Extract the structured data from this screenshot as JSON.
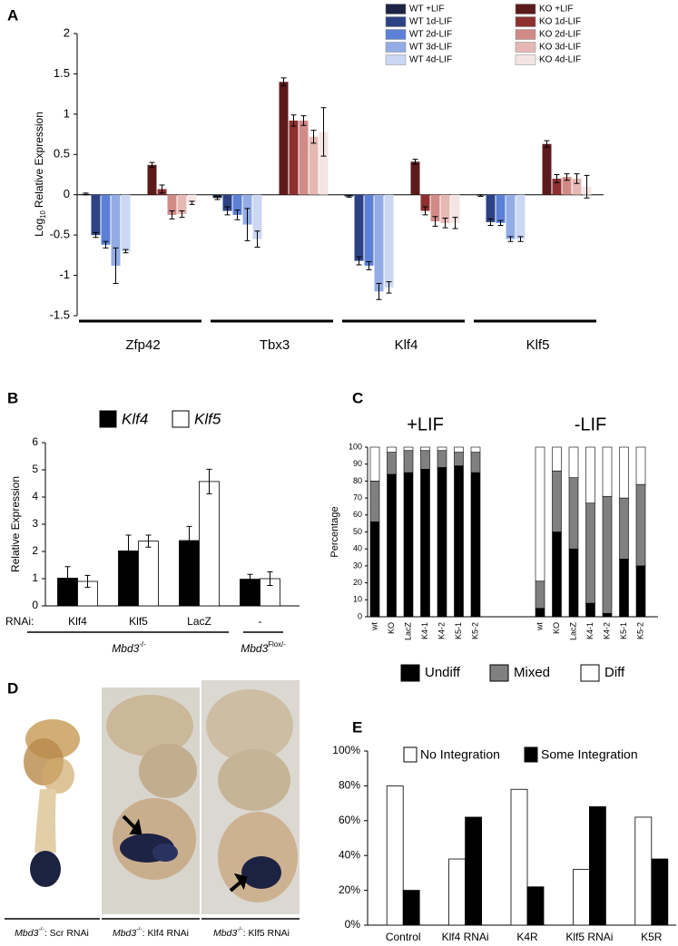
{
  "panel_labels": [
    "A",
    "B",
    "C",
    "D",
    "E"
  ],
  "panel_d": {
    "captions": [
      [
        "Mbd3",
        "-/-",
        ": Scr RNAi"
      ],
      [
        "Mbd3",
        "-/-",
        ": Klf4 RNAi"
      ],
      [
        "Mbd3",
        "-/-",
        ": Klf5 RNAi"
      ]
    ]
  },
  "chart_data": [
    {
      "type": "bar",
      "ylabel": [
        "Log",
        "10",
        "Relative Expression"
      ],
      "categories": [
        "Zfp42",
        "Tbx3",
        "Klf4",
        "Klf5"
      ],
      "ylim": [
        -1.5,
        2
      ],
      "yticks": [
        -1.5,
        -1,
        -0.5,
        0,
        0.5,
        1,
        1.5,
        2
      ],
      "series": [
        {
          "name": "WT +LIF",
          "color": "#1b2442",
          "values": [
            0.01,
            -0.04,
            -0.02,
            -0.01
          ],
          "errors": [
            0.01,
            0.02,
            0.01,
            0.01
          ]
        },
        {
          "name": "WT 1d-LIF",
          "color": "#2c4284",
          "values": [
            -0.5,
            -0.2,
            -0.82,
            -0.34
          ],
          "errors": [
            0.03,
            0.05,
            0.05,
            0.04
          ]
        },
        {
          "name": "WT 2d-LIF",
          "color": "#5b80d6",
          "values": [
            -0.62,
            -0.25,
            -0.88,
            -0.35
          ],
          "errors": [
            0.04,
            0.06,
            0.05,
            0.03
          ]
        },
        {
          "name": "WT 3d-LIF",
          "color": "#93ace5",
          "values": [
            -0.88,
            -0.37,
            -1.2,
            -0.55
          ],
          "errors": [
            0.22,
            0.2,
            0.1,
            0.03
          ]
        },
        {
          "name": "WT 4d-LIF",
          "color": "#cbd7f3",
          "values": [
            -0.7,
            -0.55,
            -1.15,
            -0.55
          ],
          "errors": [
            0.02,
            0.1,
            0.07,
            0.03
          ]
        },
        {
          "name": "KO +LIF",
          "color": "#5c1b1b",
          "values": [
            0.37,
            1.4,
            0.41,
            0.63
          ],
          "errors": [
            0.03,
            0.05,
            0.03,
            0.04
          ]
        },
        {
          "name": "KO 1d-LIF",
          "color": "#8e3030",
          "values": [
            0.07,
            0.92,
            -0.2,
            0.2
          ],
          "errors": [
            0.05,
            0.07,
            0.05,
            0.05
          ]
        },
        {
          "name": "KO 2d-LIF",
          "color": "#d18b87",
          "values": [
            -0.25,
            0.92,
            -0.33,
            0.22
          ],
          "errors": [
            0.05,
            0.06,
            0.06,
            0.04
          ]
        },
        {
          "name": "KO 3d-LIF",
          "color": "#e6b8b4",
          "values": [
            -0.24,
            0.72,
            -0.35,
            0.2
          ],
          "errors": [
            0.04,
            0.08,
            0.06,
            0.06
          ]
        },
        {
          "name": "KO 4d-LIF",
          "color": "#f4e5e2",
          "values": [
            -0.1,
            0.78,
            -0.35,
            0.1
          ],
          "errors": [
            0.02,
            0.3,
            0.07,
            0.14
          ]
        }
      ]
    },
    {
      "type": "bar",
      "ylabel": "Relative Expression",
      "xlabel": "RNAi:",
      "categories": [
        "Klf4",
        "Klf5",
        "LacZ",
        "-"
      ],
      "group_labels": [
        [
          "Mbd3",
          "-/-"
        ],
        [
          "Mbd3",
          "Flox/-"
        ]
      ],
      "ylim": [
        0,
        6
      ],
      "yticks": [
        0,
        1,
        2,
        3,
        4,
        5,
        6
      ],
      "series": [
        {
          "name": "Klf4",
          "color": "#000000",
          "values": [
            1.02,
            2.02,
            2.4,
            0.98
          ],
          "errors": [
            0.42,
            0.58,
            0.52,
            0.18
          ]
        },
        {
          "name": "Klf5",
          "color": "#ffffff",
          "values": [
            0.9,
            2.38,
            4.57,
            1.0
          ],
          "errors": [
            0.22,
            0.22,
            0.45,
            0.25
          ]
        }
      ]
    },
    {
      "type": "stacked-bar",
      "ylabel": "Percentage",
      "categories": [
        "wt",
        "KO",
        "LacZ",
        "K4-1",
        "K4-2",
        "K5-1",
        "K5-2"
      ],
      "ylim": [
        0,
        100
      ],
      "yticks": [
        0,
        10,
        20,
        30,
        40,
        50,
        60,
        70,
        80,
        90,
        100
      ],
      "series": [
        {
          "name": "Undiff",
          "color": "#000000"
        },
        {
          "name": "Mixed",
          "color": "#808080"
        },
        {
          "name": "Diff",
          "color": "#ffffff"
        }
      ],
      "panels": [
        {
          "title": "+LIF",
          "values": [
            [
              56,
              84,
              85,
              87,
              88,
              89,
              85
            ],
            [
              24,
              13,
              13,
              11,
              10,
              8,
              12
            ],
            [
              20,
              3,
              2,
              2,
              2,
              3,
              3
            ]
          ]
        },
        {
          "title": "-LIF",
          "values": [
            [
              5,
              50,
              40,
              8,
              2,
              34,
              30
            ],
            [
              16,
              36,
              42,
              59,
              69,
              36,
              48
            ],
            [
              79,
              14,
              18,
              33,
              29,
              30,
              22
            ]
          ]
        }
      ]
    },
    {
      "type": "bar",
      "categories": [
        "Control",
        "Klf4 RNAi",
        "K4R",
        "Klf5 RNAi",
        "K5R"
      ],
      "ylim": [
        0,
        100
      ],
      "yticks": [
        {
          "value": 0,
          "label": "0%"
        },
        {
          "value": 20,
          "label": "20%"
        },
        {
          "value": 40,
          "label": "40%"
        },
        {
          "value": 60,
          "label": "60%"
        },
        {
          "value": 80,
          "label": "80%"
        },
        {
          "value": 100,
          "label": "100%"
        }
      ],
      "series": [
        {
          "name": "No Integration",
          "color": "#ffffff",
          "values": [
            80,
            38,
            78,
            32,
            62
          ]
        },
        {
          "name": "Some Integration",
          "color": "#000000",
          "values": [
            20,
            62,
            22,
            68,
            38
          ]
        }
      ]
    }
  ]
}
